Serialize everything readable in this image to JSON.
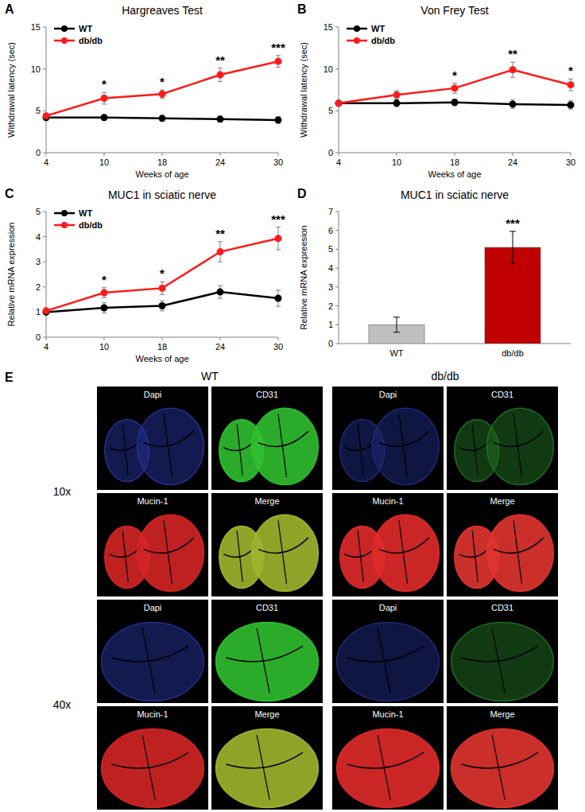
{
  "chart_data": [
    {
      "type": "line",
      "panel": "A",
      "title": "Hargreaves Test",
      "x_label": "Weeks of age",
      "y_label": "Withdrawal latency (sec)",
      "categories": [
        "4",
        "10",
        "18",
        "24",
        "30"
      ],
      "ylim": [
        0,
        15
      ],
      "yticks": [
        0,
        5,
        10,
        15
      ],
      "legend": "upper left",
      "annotations": [
        null,
        "*",
        "*",
        "**",
        "***"
      ],
      "series": [
        {
          "name": "WT",
          "color": "#000000",
          "marker": "circle",
          "values": [
            4.2,
            4.2,
            4.1,
            4.0,
            3.9
          ],
          "errors": [
            0.3,
            0.3,
            0.3,
            0.35,
            0.4
          ]
        },
        {
          "name": "db/db",
          "color": "#ff1a1a",
          "marker": "circle",
          "values": [
            4.4,
            6.5,
            7.0,
            9.3,
            10.9
          ],
          "errors": [
            0.3,
            0.7,
            0.5,
            0.8,
            0.7
          ]
        }
      ]
    },
    {
      "type": "line",
      "panel": "B",
      "title": "Von Frey Test",
      "x_label": "Weeks of age",
      "y_label": "Withdrawal latency (sec)",
      "categories": [
        "4",
        "10",
        "18",
        "24",
        "30"
      ],
      "ylim": [
        0,
        15
      ],
      "yticks": [
        0,
        5,
        10,
        15
      ],
      "legend": "upper left",
      "annotations": [
        null,
        null,
        "*",
        "**",
        "*"
      ],
      "series": [
        {
          "name": "WT",
          "color": "#000000",
          "marker": "circle",
          "values": [
            5.9,
            5.9,
            6.0,
            5.8,
            5.7
          ],
          "errors": [
            0.3,
            0.4,
            0.4,
            0.5,
            0.5
          ]
        },
        {
          "name": "db/db",
          "color": "#ff1a1a",
          "marker": "circle",
          "values": [
            5.9,
            6.9,
            7.7,
            9.9,
            8.1
          ],
          "errors": [
            0.3,
            0.5,
            0.6,
            0.9,
            0.7
          ]
        }
      ]
    },
    {
      "type": "line",
      "panel": "C",
      "title": "MUC1 in sciatic nerve",
      "x_label": "Weeks of age",
      "y_label": "Relative mRNA expression",
      "categories": [
        "4",
        "10",
        "18",
        "24",
        "30"
      ],
      "ylim": [
        0,
        5
      ],
      "yticks": [
        0,
        1,
        2,
        3,
        4,
        5
      ],
      "legend": "upper left",
      "annotations": [
        null,
        "*",
        "*",
        "**",
        "***"
      ],
      "series": [
        {
          "name": "WT",
          "color": "#000000",
          "marker": "circle",
          "values": [
            1.0,
            1.17,
            1.25,
            1.8,
            1.55
          ],
          "errors": [
            0.05,
            0.2,
            0.2,
            0.25,
            0.32
          ]
        },
        {
          "name": "db/db",
          "color": "#ff1a1a",
          "marker": "circle",
          "values": [
            1.05,
            1.77,
            1.95,
            3.4,
            3.93
          ],
          "errors": [
            0.08,
            0.2,
            0.25,
            0.4,
            0.45
          ]
        }
      ]
    },
    {
      "type": "bar",
      "panel": "D",
      "title": "MUC1 in sciatic nerve",
      "y_label": "Relative mRNA expreesion",
      "categories": [
        "WT",
        "db/db"
      ],
      "values": [
        1,
        5.1
      ],
      "errors": [
        0.4,
        0.85
      ],
      "colors": [
        "#bfbfbf",
        "#c00000"
      ],
      "ylim": [
        0,
        7
      ],
      "yticks": [
        0,
        1,
        2,
        3,
        4,
        5,
        6,
        7
      ],
      "annotations": [
        null,
        "***"
      ]
    }
  ],
  "panel_e": {
    "panel": "E",
    "groups": [
      "WT",
      "db/db"
    ],
    "rows": [
      "10x",
      "40x"
    ],
    "channels": [
      "Dapi",
      "CD31",
      "Mucin-1",
      "Merge"
    ]
  }
}
